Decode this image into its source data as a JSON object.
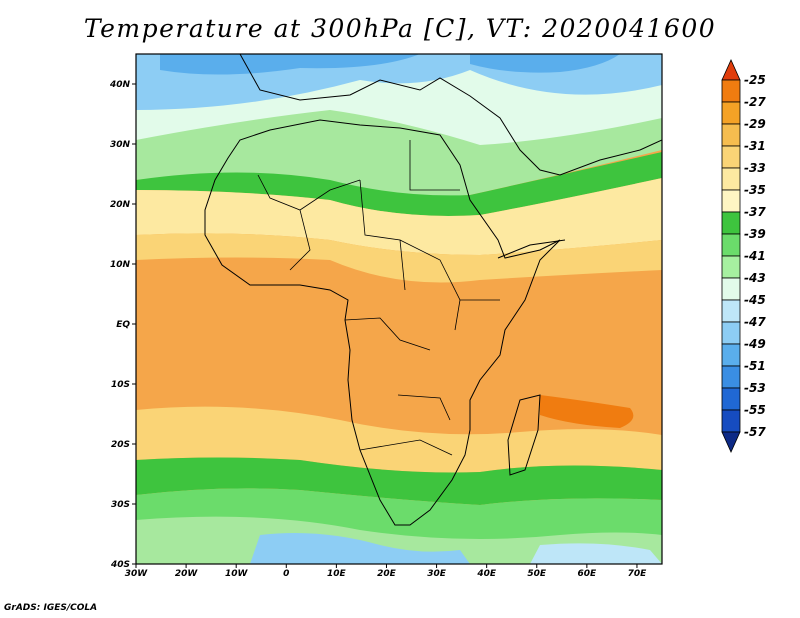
{
  "title": "Temperature at 300hPa [C], VT: 2020041600",
  "footer": "GrADS: IGES/COLA",
  "map": {
    "lon_range": [
      -30,
      75
    ],
    "lat_range": [
      -40,
      45
    ],
    "lon_ticks": [
      "30W",
      "20W",
      "10W",
      "0",
      "10E",
      "20E",
      "30E",
      "40E",
      "50E",
      "60E",
      "70E"
    ],
    "lat_ticks": [
      "40S",
      "30S",
      "20S",
      "10S",
      "EQ",
      "10N",
      "20N",
      "30N",
      "40N"
    ]
  },
  "colorbar": {
    "levels": [
      "-25",
      "-27",
      "-29",
      "-31",
      "-33",
      "-35",
      "-37",
      "-39",
      "-41",
      "-43",
      "-45",
      "-47",
      "-49",
      "-51",
      "-53",
      "-55",
      "-57"
    ],
    "colors": [
      "#e03d0c",
      "#f07c10",
      "#f5a226",
      "#f6bd4f",
      "#fad476",
      "#fde9a1",
      "#fef6c3",
      "#3ec43e",
      "#6bdc6b",
      "#a6f0a0",
      "#e2fbea",
      "#bee6f8",
      "#8dcdf4",
      "#5aaeec",
      "#3a8ee3",
      "#2068d4",
      "#164cc0",
      "#0d2a86"
    ]
  }
}
